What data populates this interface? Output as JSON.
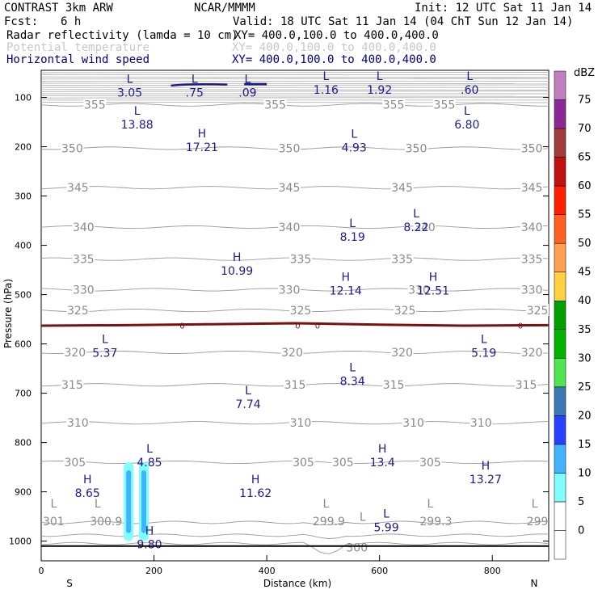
{
  "header": {
    "model": "CONTRAST  3km ARW",
    "center": "NCAR/MMMM",
    "init": "Init: 12 UTC Sat 11 Jan 14",
    "fcst_label": "Fcst:",
    "fcst_value": "6 h",
    "valid": "Valid: 18 UTC Sat 11 Jan 14 (04 ChT Sun 12 Jan 14)"
  },
  "fields": [
    {
      "name": "Radar reflectivity (lamda = 10 cm)",
      "xy": "XY= 400.0,100.0 to 400.0,400.0",
      "color": "#000000"
    },
    {
      "name": "Potential temperature",
      "xy": "XY= 400.0,100.0 to 400.0,400.0",
      "color": "#c8c8c8"
    },
    {
      "name": "Horizontal wind speed",
      "xy": "XY= 400.0,100.0 to 400.0,400.0",
      "color": "#00007a"
    }
  ],
  "colors": {
    "theta": "#9a9a9a",
    "theta_label": "#8a8a8a",
    "wind": "#1c1c8c",
    "freezing": "#7a1010",
    "surface": "#000000"
  },
  "chart_data": {
    "type": "cross-section",
    "xlabel": "Distance (km)",
    "ylabel": "Pressure (hPa)",
    "xlim": [
      0,
      900
    ],
    "ylim": [
      1040,
      45
    ],
    "x_ticks": [
      0,
      200,
      400,
      600,
      800
    ],
    "y_ticks": [
      100,
      200,
      300,
      400,
      500,
      600,
      700,
      800,
      900,
      1000
    ],
    "left_end_label": "S",
    "right_end_label": "N",
    "isentropes": [
      {
        "theta": "355",
        "p": 115,
        "labels_x": [
          95,
          415,
          625,
          715
        ]
      },
      {
        "theta": "350",
        "p": 203,
        "labels_x": [
          55,
          440,
          665,
          870
        ]
      },
      {
        "theta": "345",
        "p": 283,
        "labels_x": [
          65,
          440,
          640,
          870
        ]
      },
      {
        "theta": "340",
        "p": 363,
        "labels_x": [
          75,
          440,
          680,
          870
        ]
      },
      {
        "theta": "335",
        "p": 428,
        "labels_x": [
          75,
          460,
          640,
          870
        ]
      },
      {
        "theta": "330",
        "p": 490,
        "labels_x": [
          75,
          440,
          670,
          870
        ]
      },
      {
        "theta": "325",
        "p": 532,
        "labels_x": [
          65,
          460,
          645,
          880
        ]
      },
      {
        "theta": "320",
        "p": 617,
        "labels_x": [
          60,
          445,
          640,
          870
        ]
      },
      {
        "theta": "315",
        "p": 683,
        "labels_x": [
          55,
          450,
          625,
          860
        ]
      },
      {
        "theta": "310",
        "p": 760,
        "labels_x": [
          65,
          460,
          660,
          780
        ]
      },
      {
        "theta": "305",
        "p": 840,
        "labels_x": [
          60,
          465,
          535,
          690
        ]
      }
    ],
    "near_surface_labels": [
      {
        "text": "301",
        "x": 22,
        "p": 960
      },
      {
        "text": "300.9",
        "x": 115,
        "p": 960
      },
      {
        "text": "299.9",
        "x": 510,
        "p": 960
      },
      {
        "text": "299.3",
        "x": 700,
        "p": 960
      },
      {
        "text": "299",
        "x": 880,
        "p": 960
      },
      {
        "text": "300",
        "x": 560,
        "p": 1013
      }
    ],
    "theta_extrema": [
      {
        "type": "L",
        "x": 22,
        "p": 935
      },
      {
        "type": "L",
        "x": 100,
        "p": 935
      },
      {
        "type": "L",
        "x": 505,
        "p": 935
      },
      {
        "type": "L",
        "x": 690,
        "p": 935
      },
      {
        "type": "L",
        "x": 875,
        "p": 935
      },
      {
        "type": "L",
        "x": 570,
        "p": 962
      }
    ],
    "wind_extrema": [
      {
        "type": "L",
        "value": "3.05",
        "x": 157,
        "p": 70
      },
      {
        "type": "L",
        "value": ".75",
        "x": 272,
        "p": 70
      },
      {
        "type": "L",
        "value": ".09",
        "x": 366,
        "p": 70
      },
      {
        "type": "L",
        "value": "1.16",
        "x": 505,
        "p": 65
      },
      {
        "type": "L",
        "value": "1.92",
        "x": 600,
        "p": 65
      },
      {
        "type": "L",
        "value": ".60",
        "x": 760,
        "p": 65
      },
      {
        "type": "L",
        "value": "13.88",
        "x": 170,
        "p": 135
      },
      {
        "type": "L",
        "value": "6.80",
        "x": 755,
        "p": 135
      },
      {
        "type": "H",
        "value": "17.21",
        "x": 285,
        "p": 181
      },
      {
        "type": "L",
        "value": "4.93",
        "x": 555,
        "p": 182
      },
      {
        "type": "L",
        "value": "8.22",
        "x": 665,
        "p": 343
      },
      {
        "type": "L",
        "value": "8.19",
        "x": 552,
        "p": 363
      },
      {
        "type": "H",
        "value": "10.99",
        "x": 347,
        "p": 432
      },
      {
        "type": "H",
        "value": "12.14",
        "x": 540,
        "p": 472
      },
      {
        "type": "H",
        "value": "12.51",
        "x": 695,
        "p": 472
      },
      {
        "type": "L",
        "value": "5.37",
        "x": 113,
        "p": 598
      },
      {
        "type": "L",
        "value": "5.19",
        "x": 785,
        "p": 598
      },
      {
        "type": "L",
        "value": "8.34",
        "x": 552,
        "p": 656
      },
      {
        "type": "L",
        "value": "7.74",
        "x": 367,
        "p": 702
      },
      {
        "type": "L",
        "value": "4.85",
        "x": 192,
        "p": 820
      },
      {
        "type": "H",
        "value": "13.4",
        "x": 605,
        "p": 820
      },
      {
        "type": "H",
        "value": "13.27",
        "x": 788,
        "p": 855
      },
      {
        "type": "H",
        "value": "8.65",
        "x": 82,
        "p": 883
      },
      {
        "type": "H",
        "value": "11.62",
        "x": 380,
        "p": 883
      },
      {
        "type": "L",
        "value": "5.99",
        "x": 612,
        "p": 952
      },
      {
        "type": "H",
        "value": "9.80",
        "x": 192,
        "p": 987
      }
    ],
    "freezing_level": {
      "label": "0",
      "label_x": [
        250,
        455,
        490,
        850
      ],
      "p": [
        563,
        562,
        560,
        558,
        561,
        563,
        562
      ]
    },
    "reflectivity_cells": [
      {
        "x": 155,
        "p_top": 840,
        "p_bottom": 1000,
        "dbz": 10
      },
      {
        "x": 182,
        "p_top": 840,
        "p_bottom": 1000,
        "dbz": 10
      }
    ],
    "colorbar": {
      "unit": "dBZ",
      "levels": [
        0,
        5,
        10,
        15,
        20,
        25,
        30,
        35,
        40,
        45,
        50,
        55,
        60,
        65,
        70,
        75
      ],
      "colors": [
        "#ffffff",
        "#80ffff",
        "#40b4ff",
        "#2840ff",
        "#3c78b4",
        "#50e650",
        "#00b400",
        "#00a000",
        "#ffd040",
        "#ffa050",
        "#ff6020",
        "#ff2000",
        "#c01010",
        "#a03c3c",
        "#8c2896",
        "#c080c0"
      ]
    }
  }
}
